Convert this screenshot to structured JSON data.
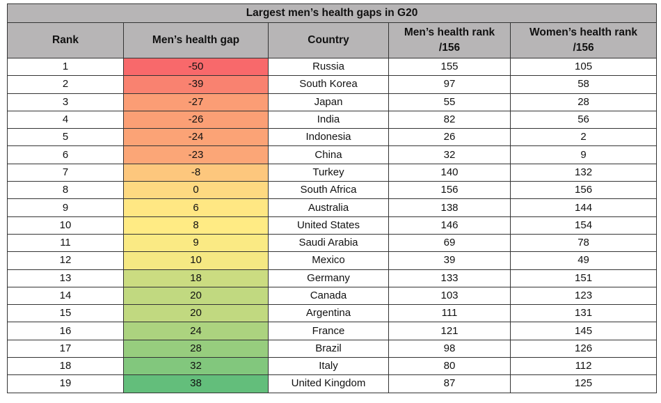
{
  "chart_data": {
    "type": "table",
    "title": "Largest men’s health gaps in G20",
    "columns": [
      "Rank",
      "Men’s health gap",
      "Country",
      "Men’s health rank /156",
      "Women’s health rank /156"
    ],
    "rows": [
      [
        1,
        -50,
        "Russia",
        155,
        105
      ],
      [
        2,
        -39,
        "South Korea",
        97,
        58
      ],
      [
        3,
        -27,
        "Japan",
        55,
        28
      ],
      [
        4,
        -26,
        "India",
        82,
        56
      ],
      [
        5,
        -24,
        "Indonesia",
        26,
        2
      ],
      [
        6,
        -23,
        "China",
        32,
        9
      ],
      [
        7,
        -8,
        "Turkey",
        140,
        132
      ],
      [
        8,
        0,
        "South Africa",
        156,
        156
      ],
      [
        9,
        6,
        "Australia",
        138,
        144
      ],
      [
        10,
        8,
        "United States",
        146,
        154
      ],
      [
        11,
        9,
        "Saudi Arabia",
        69,
        78
      ],
      [
        12,
        10,
        "Mexico",
        39,
        49
      ],
      [
        13,
        18,
        "Germany",
        133,
        151
      ],
      [
        14,
        20,
        "Canada",
        103,
        123
      ],
      [
        15,
        20,
        "Argentina",
        111,
        131
      ],
      [
        16,
        24,
        "France",
        121,
        145
      ],
      [
        17,
        28,
        "Brazil",
        98,
        126
      ],
      [
        18,
        32,
        "Italy",
        80,
        112
      ],
      [
        19,
        38,
        "United Kingdom",
        87,
        125
      ]
    ],
    "color_scale": {
      "min_color": "#f8696b",
      "mid_color": "#ffeb84",
      "max_color": "#63be7b",
      "header_color": "#b7b5b6"
    }
  }
}
